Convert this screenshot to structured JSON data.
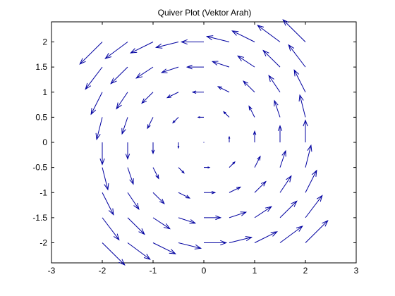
{
  "chart_data": {
    "type": "quiver",
    "title": "Quiver Plot (Vektor Arah)",
    "xlabel": "",
    "ylabel": "",
    "xlim": [
      -3,
      3
    ],
    "ylim": [
      -2.4,
      2.4
    ],
    "xticks": [
      -3,
      -2,
      -1,
      0,
      1,
      2,
      3
    ],
    "xtick_labels": [
      "-3",
      "-2",
      "-1",
      "0",
      "1",
      "2",
      "3"
    ],
    "yticks": [
      -2,
      -1.5,
      -1,
      -0.5,
      0,
      0.5,
      1,
      1.5,
      2
    ],
    "ytick_labels": [
      "-2",
      "-1.5",
      "-1",
      "-0.5",
      "0",
      "0.5",
      "1",
      "1.5",
      "2"
    ],
    "grid": false,
    "x": [
      -2,
      -1.5,
      -1,
      -0.5,
      0,
      0.5,
      1,
      1.5,
      2
    ],
    "y": [
      -2,
      -1.5,
      -1,
      -0.5,
      0,
      0.5,
      1,
      1.5,
      2
    ],
    "field": {
      "u": "-y",
      "v": "x"
    },
    "scale": 0.22,
    "arrow_color": "#0000a0"
  }
}
